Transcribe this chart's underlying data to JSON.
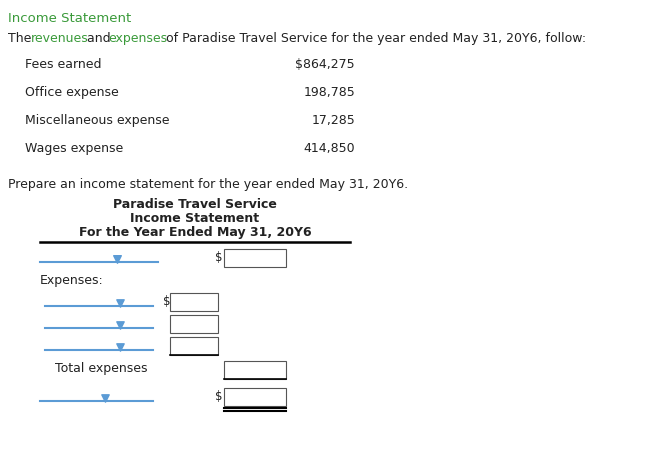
{
  "title": "Income Statement",
  "title_color": "#3a9a3a",
  "revenues_color": "#3a9a3a",
  "expenses_color": "#3a9a3a",
  "items": [
    {
      "label": "Fees earned",
      "value": "$864,275"
    },
    {
      "label": "Office expense",
      "value": "198,785"
    },
    {
      "label": "Miscellaneous expense",
      "value": "17,285"
    },
    {
      "label": "Wages expense",
      "value": "414,850"
    }
  ],
  "prepare_text": "Prepare an income statement for the year ended May 31, 20Y6.",
  "statement_title1": "Paradise Travel Service",
  "statement_title2": "Income Statement",
  "statement_title3": "For the Year Ended May 31, 20Y6",
  "bg_color": "#ffffff",
  "text_color": "#222222",
  "line_color": "#5b9bd5",
  "box_color": "#ffffff",
  "box_border": "#555555",
  "arrow_color": "#5b9bd5",
  "font_size": 9.5,
  "small_font": 8.5
}
